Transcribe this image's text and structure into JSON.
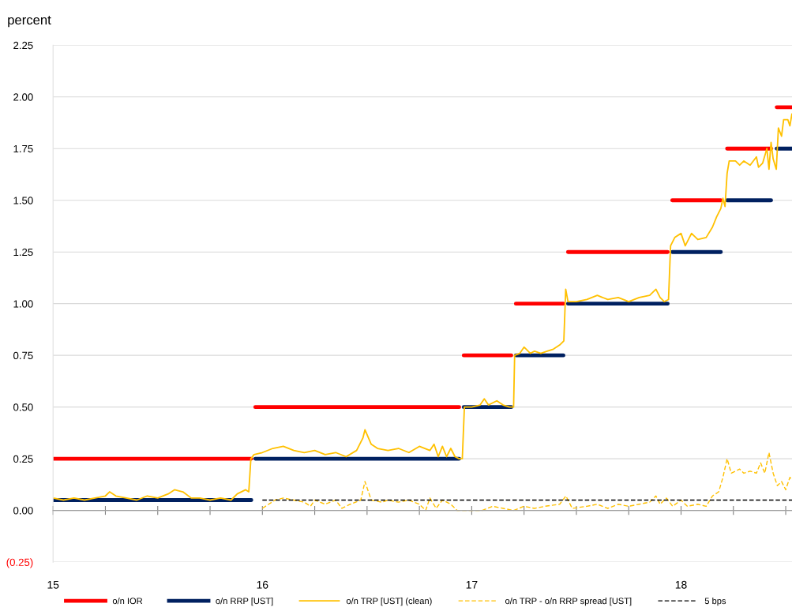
{
  "chart_data": {
    "type": "line",
    "ylabel": "percent",
    "xlim": [
      15,
      18.53
    ],
    "xticks": [
      15,
      {
        "value": 15.25,
        "label": null
      },
      {
        "value": 15.5,
        "label": null
      },
      {
        "value": 15.75,
        "label": null
      },
      16,
      {
        "value": 16.25,
        "label": null
      },
      {
        "value": 16.5,
        "label": null
      },
      {
        "value": 16.75,
        "label": null
      },
      17,
      {
        "value": 17.25,
        "label": null
      },
      {
        "value": 17.5,
        "label": null
      },
      {
        "value": 17.75,
        "label": null
      },
      18,
      {
        "value": 18.25,
        "label": null
      },
      {
        "value": 18.5,
        "label": null
      }
    ],
    "ylim": [
      -0.25,
      2.25
    ],
    "yticks": [
      {
        "value": -0.25,
        "label": "(0.25)"
      },
      {
        "value": 0,
        "label": "0.00"
      },
      {
        "value": 0.25,
        "label": "0.25"
      },
      {
        "value": 0.5,
        "label": "0.50"
      },
      {
        "value": 0.75,
        "label": "0.75"
      },
      {
        "value": 1.0,
        "label": "1.00"
      },
      {
        "value": 1.25,
        "label": "1.25"
      },
      {
        "value": 1.5,
        "label": "1.50"
      },
      {
        "value": 1.75,
        "label": "1.75"
      },
      {
        "value": 2.0,
        "label": "2.00"
      },
      {
        "value": 2.25,
        "label": "2.25"
      }
    ],
    "grid": "y",
    "legend": "bottom",
    "marker": "none",
    "series": [
      {
        "name": "o/n IOR",
        "color": "#ff0000",
        "line_style": "solid",
        "x": [
          15,
          15.947,
          15.955,
          15.966,
          16.94,
          16.95,
          16.962,
          17.189,
          17.2,
          17.211,
          17.438,
          17.45,
          17.46,
          17.936,
          17.947,
          17.958,
          18.19,
          18.205,
          18.22,
          18.43,
          18.445,
          18.457,
          18.53
        ],
        "values": [
          0.25,
          0.25,
          null,
          0.5,
          0.5,
          null,
          0.75,
          0.75,
          null,
          1.0,
          1.0,
          null,
          1.25,
          1.25,
          null,
          1.5,
          1.5,
          null,
          1.75,
          1.75,
          null,
          1.95,
          1.95
        ]
      },
      {
        "name": "o/n RRP [UST]",
        "color": "#002060",
        "line_style": "solid",
        "x": [
          15,
          15.947,
          15.955,
          15.966,
          16.94,
          16.95,
          16.962,
          17.189,
          17.2,
          17.211,
          17.438,
          17.45,
          17.46,
          17.936,
          17.947,
          17.958,
          18.19,
          18.205,
          18.22,
          18.43,
          18.445,
          18.457,
          18.53
        ],
        "values": [
          0.05,
          0.05,
          null,
          0.25,
          0.25,
          null,
          0.5,
          0.5,
          null,
          0.75,
          0.75,
          null,
          1.0,
          1.0,
          null,
          1.25,
          1.25,
          null,
          1.5,
          1.5,
          null,
          1.75,
          1.75
        ]
      },
      {
        "name": "o/n TRP [UST] (clean)",
        "color": "#ffc000",
        "line_style": "solid",
        "x": [
          15.0,
          15.05,
          15.1,
          15.15,
          15.2,
          15.25,
          15.27,
          15.3,
          15.35,
          15.4,
          15.45,
          15.5,
          15.55,
          15.58,
          15.62,
          15.66,
          15.7,
          15.75,
          15.8,
          15.85,
          15.88,
          15.92,
          15.935,
          15.945,
          15.96,
          16.0,
          16.05,
          16.1,
          16.15,
          16.2,
          16.25,
          16.3,
          16.35,
          16.4,
          16.45,
          16.48,
          16.49,
          16.52,
          16.55,
          16.6,
          16.65,
          16.7,
          16.75,
          16.8,
          16.82,
          16.84,
          16.86,
          16.88,
          16.9,
          16.92,
          16.94,
          16.955,
          16.965,
          17.0,
          17.04,
          17.06,
          17.08,
          17.12,
          17.15,
          17.18,
          17.2,
          17.205,
          17.23,
          17.25,
          17.28,
          17.3,
          17.33,
          17.36,
          17.39,
          17.42,
          17.44,
          17.449,
          17.46,
          17.5,
          17.55,
          17.6,
          17.65,
          17.7,
          17.75,
          17.8,
          17.85,
          17.88,
          17.9,
          17.92,
          17.94,
          17.95,
          17.97,
          18.0,
          18.02,
          18.05,
          18.08,
          18.12,
          18.15,
          18.17,
          18.19,
          18.2,
          18.21,
          18.22,
          18.23,
          18.26,
          18.28,
          18.3,
          18.33,
          18.36,
          18.37,
          18.39,
          18.41,
          18.42,
          18.43,
          18.44,
          18.455,
          18.465,
          18.48,
          18.49,
          18.51,
          18.52,
          18.53
        ],
        "values": [
          0.06,
          0.05,
          0.06,
          0.05,
          0.06,
          0.07,
          0.09,
          0.07,
          0.06,
          0.05,
          0.07,
          0.06,
          0.08,
          0.1,
          0.09,
          0.06,
          0.06,
          0.05,
          0.06,
          0.05,
          0.08,
          0.1,
          0.09,
          0.25,
          0.27,
          0.28,
          0.3,
          0.31,
          0.29,
          0.28,
          0.29,
          0.27,
          0.28,
          0.26,
          0.29,
          0.35,
          0.39,
          0.32,
          0.3,
          0.29,
          0.3,
          0.28,
          0.31,
          0.29,
          0.32,
          0.26,
          0.31,
          0.26,
          0.3,
          0.26,
          0.25,
          0.25,
          0.5,
          0.5,
          0.51,
          0.54,
          0.51,
          0.53,
          0.51,
          0.5,
          0.5,
          0.75,
          0.76,
          0.79,
          0.76,
          0.77,
          0.76,
          0.77,
          0.78,
          0.8,
          0.82,
          1.07,
          1.01,
          1.01,
          1.02,
          1.04,
          1.02,
          1.03,
          1.01,
          1.03,
          1.04,
          1.07,
          1.03,
          1.01,
          1.02,
          1.28,
          1.32,
          1.34,
          1.28,
          1.34,
          1.31,
          1.32,
          1.37,
          1.42,
          1.46,
          1.51,
          1.47,
          1.63,
          1.69,
          1.69,
          1.67,
          1.69,
          1.67,
          1.71,
          1.66,
          1.68,
          1.75,
          1.65,
          1.78,
          1.7,
          1.65,
          1.85,
          1.81,
          1.89,
          1.89,
          1.86,
          1.92
        ]
      },
      {
        "name": "o/n TRP - o/n RRP spread [UST]",
        "color": "#ffc000",
        "line_style": "dashed",
        "x": [
          16.0,
          16.03,
          16.06,
          16.1,
          16.15,
          16.2,
          16.23,
          16.25,
          16.3,
          16.35,
          16.38,
          16.42,
          16.47,
          16.49,
          16.52,
          16.57,
          16.6,
          16.65,
          16.7,
          16.75,
          16.78,
          16.8,
          16.83,
          16.86,
          16.9,
          16.93,
          16.97,
          17.05,
          17.1,
          17.15,
          17.2,
          17.25,
          17.3,
          17.35,
          17.42,
          17.45,
          17.48,
          17.55,
          17.6,
          17.65,
          17.7,
          17.75,
          17.8,
          17.85,
          17.88,
          17.9,
          17.93,
          17.96,
          18.0,
          18.03,
          18.08,
          18.12,
          18.15,
          18.18,
          18.2,
          18.22,
          18.24,
          18.28,
          18.3,
          18.33,
          18.36,
          18.38,
          18.4,
          18.42,
          18.44,
          18.46,
          18.48,
          18.5,
          18.52,
          18.53
        ],
        "values": [
          0.01,
          0.03,
          0.05,
          0.06,
          0.05,
          0.04,
          0.02,
          0.05,
          0.03,
          0.05,
          0.01,
          0.03,
          0.05,
          0.14,
          0.05,
          0.04,
          0.05,
          0.04,
          0.05,
          0.03,
          0.0,
          0.06,
          0.01,
          0.05,
          0.03,
          0.0,
          0.0,
          0.0,
          0.02,
          0.01,
          0.0,
          0.02,
          0.01,
          0.02,
          0.03,
          0.07,
          0.01,
          0.02,
          0.03,
          0.01,
          0.03,
          0.02,
          0.03,
          0.04,
          0.07,
          0.03,
          0.06,
          0.02,
          0.05,
          0.02,
          0.03,
          0.02,
          0.07,
          0.09,
          0.16,
          0.25,
          0.18,
          0.2,
          0.18,
          0.19,
          0.18,
          0.23,
          0.18,
          0.28,
          0.18,
          0.12,
          0.14,
          0.1,
          0.16,
          0.15
        ]
      },
      {
        "name": "5 bps",
        "color": "#000000",
        "line_style": "dashed",
        "x": [
          16.0,
          18.53
        ],
        "values": [
          0.05,
          0.05
        ]
      }
    ]
  }
}
